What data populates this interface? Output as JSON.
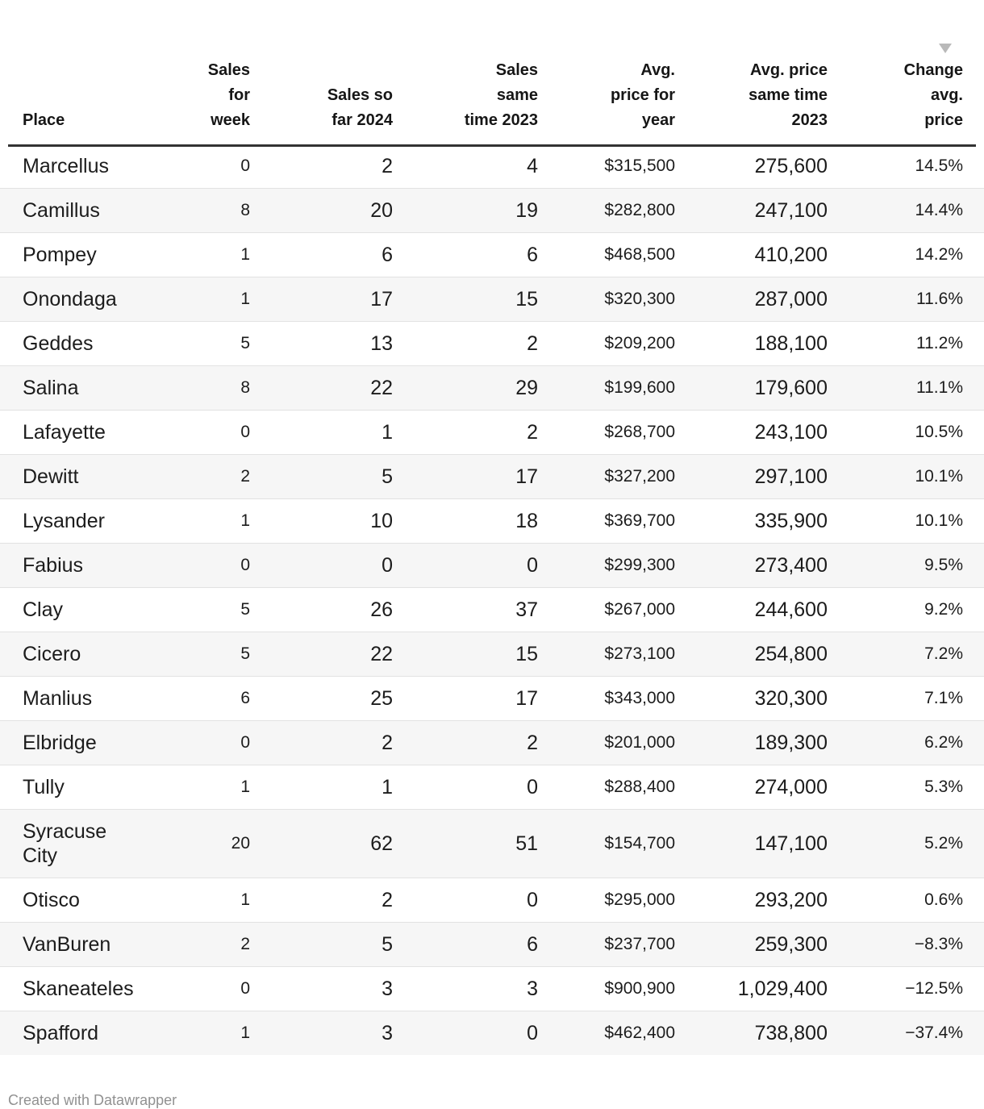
{
  "chart_data": {
    "type": "table",
    "columns": [
      {
        "id": "place",
        "label": "Place",
        "align": "left",
        "size": "lg"
      },
      {
        "id": "sales_week",
        "label": "Sales\nfor\nweek",
        "align": "right",
        "size": "sm"
      },
      {
        "id": "sales_2024",
        "label": "Sales so\nfar 2024",
        "align": "right",
        "size": "lg"
      },
      {
        "id": "sales_2023",
        "label": "Sales\nsame\ntime 2023",
        "align": "right",
        "size": "lg"
      },
      {
        "id": "price_year",
        "label": "Avg.\nprice for\nyear",
        "align": "right",
        "size": "sm"
      },
      {
        "id": "price_2023",
        "label": "Avg. price\nsame time\n2023",
        "align": "right",
        "size": "lg"
      },
      {
        "id": "change",
        "label": "Change\navg.\nprice",
        "align": "right",
        "size": "sm",
        "sorted": "desc"
      }
    ],
    "rows": [
      {
        "place": "Marcellus",
        "sales_week": "0",
        "sales_2024": "2",
        "sales_2023": "4",
        "price_year": "$315,500",
        "price_2023": "275,600",
        "change": "14.5%"
      },
      {
        "place": "Camillus",
        "sales_week": "8",
        "sales_2024": "20",
        "sales_2023": "19",
        "price_year": "$282,800",
        "price_2023": "247,100",
        "change": "14.4%"
      },
      {
        "place": "Pompey",
        "sales_week": "1",
        "sales_2024": "6",
        "sales_2023": "6",
        "price_year": "$468,500",
        "price_2023": "410,200",
        "change": "14.2%"
      },
      {
        "place": "Onondaga",
        "sales_week": "1",
        "sales_2024": "17",
        "sales_2023": "15",
        "price_year": "$320,300",
        "price_2023": "287,000",
        "change": "11.6%"
      },
      {
        "place": "Geddes",
        "sales_week": "5",
        "sales_2024": "13",
        "sales_2023": "2",
        "price_year": "$209,200",
        "price_2023": "188,100",
        "change": "11.2%"
      },
      {
        "place": "Salina",
        "sales_week": "8",
        "sales_2024": "22",
        "sales_2023": "29",
        "price_year": "$199,600",
        "price_2023": "179,600",
        "change": "11.1%"
      },
      {
        "place": "Lafayette",
        "sales_week": "0",
        "sales_2024": "1",
        "sales_2023": "2",
        "price_year": "$268,700",
        "price_2023": "243,100",
        "change": "10.5%"
      },
      {
        "place": "Dewitt",
        "sales_week": "2",
        "sales_2024": "5",
        "sales_2023": "17",
        "price_year": "$327,200",
        "price_2023": "297,100",
        "change": "10.1%"
      },
      {
        "place": "Lysander",
        "sales_week": "1",
        "sales_2024": "10",
        "sales_2023": "18",
        "price_year": "$369,700",
        "price_2023": "335,900",
        "change": "10.1%"
      },
      {
        "place": "Fabius",
        "sales_week": "0",
        "sales_2024": "0",
        "sales_2023": "0",
        "price_year": "$299,300",
        "price_2023": "273,400",
        "change": "9.5%"
      },
      {
        "place": "Clay",
        "sales_week": "5",
        "sales_2024": "26",
        "sales_2023": "37",
        "price_year": "$267,000",
        "price_2023": "244,600",
        "change": "9.2%"
      },
      {
        "place": "Cicero",
        "sales_week": "5",
        "sales_2024": "22",
        "sales_2023": "15",
        "price_year": "$273,100",
        "price_2023": "254,800",
        "change": "7.2%"
      },
      {
        "place": "Manlius",
        "sales_week": "6",
        "sales_2024": "25",
        "sales_2023": "17",
        "price_year": "$343,000",
        "price_2023": "320,300",
        "change": "7.1%"
      },
      {
        "place": "Elbridge",
        "sales_week": "0",
        "sales_2024": "2",
        "sales_2023": "2",
        "price_year": "$201,000",
        "price_2023": "189,300",
        "change": "6.2%"
      },
      {
        "place": "Tully",
        "sales_week": "1",
        "sales_2024": "1",
        "sales_2023": "0",
        "price_year": "$288,400",
        "price_2023": "274,000",
        "change": "5.3%"
      },
      {
        "place": "Syracuse\nCity",
        "sales_week": "20",
        "sales_2024": "62",
        "sales_2023": "51",
        "price_year": "$154,700",
        "price_2023": "147,100",
        "change": "5.2%"
      },
      {
        "place": "Otisco",
        "sales_week": "1",
        "sales_2024": "2",
        "sales_2023": "0",
        "price_year": "$295,000",
        "price_2023": "293,200",
        "change": "0.6%"
      },
      {
        "place": "VanBuren",
        "sales_week": "2",
        "sales_2024": "5",
        "sales_2023": "6",
        "price_year": "$237,700",
        "price_2023": "259,300",
        "change": "−8.3%"
      },
      {
        "place": "Skaneateles",
        "sales_week": "0",
        "sales_2024": "3",
        "sales_2023": "3",
        "price_year": "$900,900",
        "price_2023": "1,029,400",
        "change": "−12.5%"
      },
      {
        "place": "Spafford",
        "sales_week": "1",
        "sales_2024": "3",
        "sales_2023": "0",
        "price_year": "$462,400",
        "price_2023": "738,800",
        "change": "−37.4%"
      }
    ]
  },
  "icons": {
    "sort_descending": "triangle-down"
  },
  "footer": {
    "credit": "Created with Datawrapper"
  },
  "colors": {
    "text": "#1c1c1c",
    "header_rule": "#333333",
    "row_stripe": "#f6f6f6",
    "row_border": "#e2e2e2",
    "sort_icon": "#b9b9b9",
    "muted_footer": "#919191"
  }
}
